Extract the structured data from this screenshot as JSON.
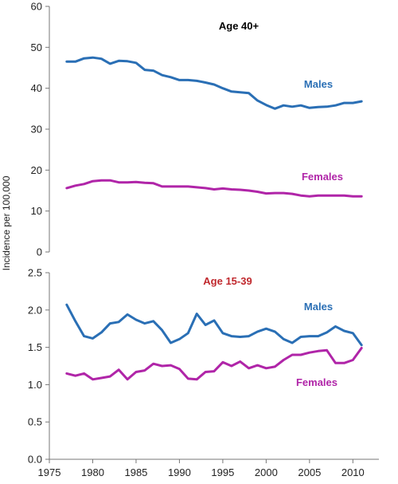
{
  "chart_data": [
    {
      "type": "line",
      "title": "Age 40+",
      "title_color": "#000000",
      "ylabel": "Incidence per 100,000",
      "xlim": [
        1975,
        2013
      ],
      "ylim": [
        0,
        60
      ],
      "yticks": [
        0,
        10,
        20,
        30,
        40,
        50,
        60
      ],
      "grid": false,
      "series": [
        {
          "name": "Males",
          "color": "#2a6fb5",
          "x": [
            1977,
            1978,
            1979,
            1980,
            1981,
            1982,
            1983,
            1984,
            1985,
            1986,
            1987,
            1988,
            1989,
            1990,
            1991,
            1992,
            1993,
            1994,
            1995,
            1996,
            1997,
            1998,
            1999,
            2000,
            2001,
            2002,
            2003,
            2004,
            2005,
            2006,
            2007,
            2008,
            2009,
            2010,
            2011
          ],
          "values": [
            46.5,
            46.5,
            47.3,
            47.5,
            47.2,
            46.0,
            46.7,
            46.6,
            46.2,
            44.5,
            44.3,
            43.2,
            42.7,
            42.0,
            42.0,
            41.8,
            41.4,
            40.9,
            40.0,
            39.2,
            39.0,
            38.8,
            37.0,
            35.9,
            35.0,
            35.8,
            35.5,
            35.8,
            35.2,
            35.4,
            35.5,
            35.8,
            36.4,
            36.4,
            36.8
          ]
        },
        {
          "name": "Females",
          "color": "#b025a8",
          "x": [
            1977,
            1978,
            1979,
            1980,
            1981,
            1982,
            1983,
            1984,
            1985,
            1986,
            1987,
            1988,
            1989,
            1990,
            1991,
            1992,
            1993,
            1994,
            1995,
            1996,
            1997,
            1998,
            1999,
            2000,
            2001,
            2002,
            2003,
            2004,
            2005,
            2006,
            2007,
            2008,
            2009,
            2010,
            2011
          ],
          "values": [
            15.6,
            16.2,
            16.6,
            17.3,
            17.5,
            17.5,
            17.0,
            17.0,
            17.1,
            16.9,
            16.8,
            16.0,
            16.0,
            16.0,
            16.0,
            15.8,
            15.6,
            15.3,
            15.5,
            15.3,
            15.2,
            15.0,
            14.7,
            14.3,
            14.4,
            14.4,
            14.2,
            13.8,
            13.6,
            13.8,
            13.8,
            13.8,
            13.8,
            13.6,
            13.6
          ]
        }
      ]
    },
    {
      "type": "line",
      "title": "Age 15-39",
      "title_color": "#c0282d",
      "ylabel": "Incidence per 100,000",
      "xlim": [
        1975,
        2013
      ],
      "ylim": [
        0,
        2.5
      ],
      "yticks": [
        0.0,
        0.5,
        1.0,
        1.5,
        2.0,
        2.5
      ],
      "ytick_labels": [
        "0.0",
        "0.5",
        "1.0",
        "1.5",
        "2.0",
        "2.5"
      ],
      "xticks": [
        1975,
        1980,
        1985,
        1990,
        1995,
        2000,
        2005,
        2010
      ],
      "grid": false,
      "series": [
        {
          "name": "Males",
          "color": "#2a6fb5",
          "x": [
            1977,
            1978,
            1979,
            1980,
            1981,
            1982,
            1983,
            1984,
            1985,
            1986,
            1987,
            1988,
            1989,
            1990,
            1991,
            1992,
            1993,
            1994,
            1995,
            1996,
            1997,
            1998,
            1999,
            2000,
            2001,
            2002,
            2003,
            2004,
            2005,
            2006,
            2007,
            2008,
            2009,
            2010,
            2011
          ],
          "values": [
            2.07,
            1.85,
            1.65,
            1.62,
            1.7,
            1.82,
            1.84,
            1.94,
            1.87,
            1.82,
            1.85,
            1.73,
            1.56,
            1.61,
            1.69,
            1.95,
            1.8,
            1.86,
            1.69,
            1.65,
            1.64,
            1.65,
            1.71,
            1.75,
            1.71,
            1.61,
            1.56,
            1.64,
            1.65,
            1.65,
            1.7,
            1.78,
            1.72,
            1.69,
            1.53
          ]
        },
        {
          "name": "Females",
          "color": "#b025a8",
          "x": [
            1977,
            1978,
            1979,
            1980,
            1981,
            1982,
            1983,
            1984,
            1985,
            1986,
            1987,
            1988,
            1989,
            1990,
            1991,
            1992,
            1993,
            1994,
            1995,
            1996,
            1997,
            1998,
            1999,
            2000,
            2001,
            2002,
            2003,
            2004,
            2005,
            2006,
            2007,
            2008,
            2009,
            2010,
            2011
          ],
          "values": [
            1.15,
            1.12,
            1.15,
            1.07,
            1.09,
            1.11,
            1.2,
            1.07,
            1.17,
            1.19,
            1.28,
            1.25,
            1.26,
            1.21,
            1.08,
            1.07,
            1.17,
            1.18,
            1.3,
            1.25,
            1.31,
            1.22,
            1.26,
            1.22,
            1.24,
            1.33,
            1.4,
            1.4,
            1.43,
            1.45,
            1.46,
            1.29,
            1.29,
            1.33,
            1.49
          ]
        }
      ]
    }
  ]
}
